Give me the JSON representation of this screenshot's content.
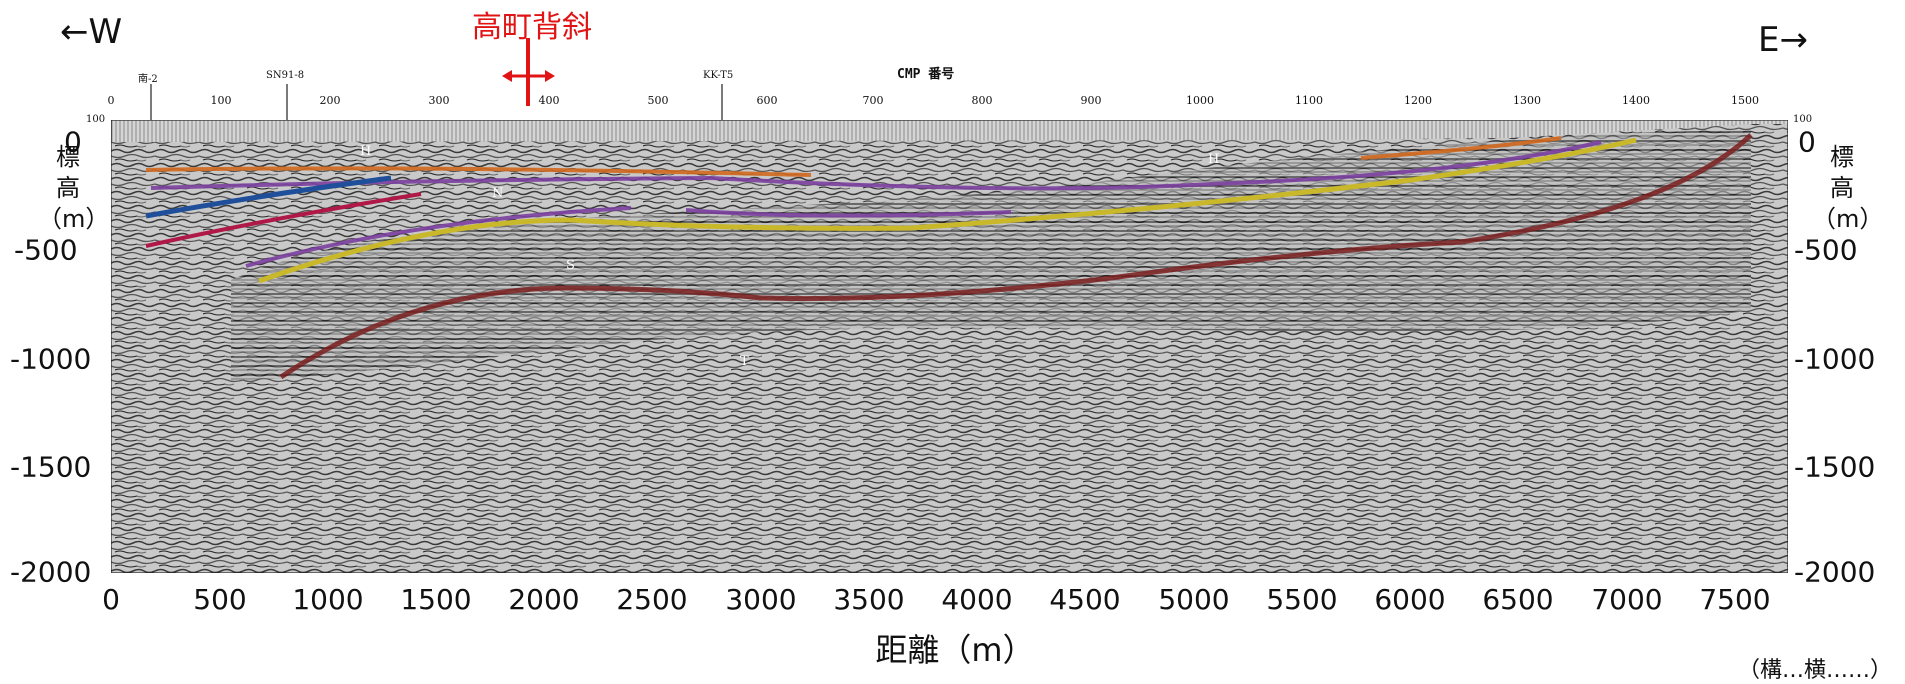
{
  "direction": {
    "west": "←W",
    "east": "E→"
  },
  "anticline": {
    "label": "高町背斜",
    "marker_color": "#e01414"
  },
  "cmp_axis": {
    "title": "CMP 番号",
    "ticks": [
      "0",
      "100",
      "200",
      "300",
      "400",
      "500",
      "600",
      "700",
      "800",
      "900",
      "1000",
      "1100",
      "1200",
      "1300",
      "1400",
      "1500"
    ],
    "end_label_left": "100",
    "end_label_right": "100"
  },
  "sites": [
    "南-2",
    "SN91-8",
    "KK-T5"
  ],
  "elevation_axis": {
    "label_chars": [
      "標",
      "高",
      "（m）"
    ],
    "ticks": [
      "0",
      "-500",
      "-1000",
      "-1500",
      "-2000"
    ]
  },
  "distance_axis": {
    "label": "距離（m）",
    "ticks": [
      "0",
      "500",
      "1000",
      "1500",
      "2000",
      "2500",
      "3000",
      "3500",
      "4000",
      "4500",
      "5000",
      "5500",
      "6000",
      "6500",
      "7000",
      "7500"
    ]
  },
  "horizon_labels": [
    "H",
    "H",
    "N",
    "S",
    "T"
  ],
  "credit": "（構…横……）",
  "horizon_colors": {
    "orange": "#d2691e",
    "purple": "#7b3fa0",
    "blue": "#1f4f9a",
    "crimson": "#b01848",
    "yellow": "#c8b82a",
    "brown": "#7a1e1e"
  }
}
